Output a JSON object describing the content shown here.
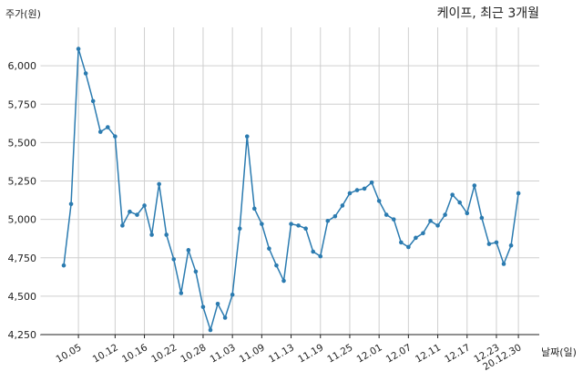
{
  "chart_data": {
    "type": "line",
    "title": "케이프, 최근 3개월",
    "ylabel": "주가(원)",
    "xlabel": "날짜(일)",
    "ylim": [
      4250,
      6250
    ],
    "yticks": [
      4250,
      4500,
      4750,
      5000,
      5250,
      5500,
      5750,
      6000
    ],
    "ytick_labels": [
      "4,250",
      "4,500",
      "4,750",
      "5,000",
      "5,250",
      "5,500",
      "5,750",
      "6,000"
    ],
    "grid": true,
    "line_color": "#2b7bb0",
    "xtick_labels": [
      "10.05",
      "10.12",
      "10.16",
      "10.22",
      "10.28",
      "11.03",
      "11.09",
      "11.13",
      "11.19",
      "11.25",
      "12.01",
      "12.07",
      "12.11",
      "12.17",
      "12.23",
      "20.12.30"
    ],
    "xtick_index": [
      2,
      7,
      11,
      15,
      19,
      23,
      27,
      31,
      35,
      39,
      43,
      47,
      51,
      55,
      59,
      62
    ],
    "series": [
      {
        "values": [
          4700,
          5100,
          6110,
          5950,
          5770,
          5570,
          5600,
          5540,
          4960,
          5050,
          5030,
          5090,
          4900,
          5230,
          4900,
          4740,
          4520,
          4800,
          4660,
          4430,
          4280,
          4450,
          4360,
          4510,
          4940,
          5540,
          5070,
          4970,
          4810,
          4700,
          4600,
          4970,
          4960,
          4940,
          4790,
          4760,
          4990,
          5020,
          5090,
          5170,
          5190,
          5200,
          5240,
          5120,
          5030,
          5000,
          4850,
          4820,
          4880,
          4910,
          4990,
          4960,
          5030,
          5160,
          5110,
          5040,
          5220,
          5010,
          4840,
          4850,
          4710,
          4830,
          5170
        ]
      }
    ]
  }
}
